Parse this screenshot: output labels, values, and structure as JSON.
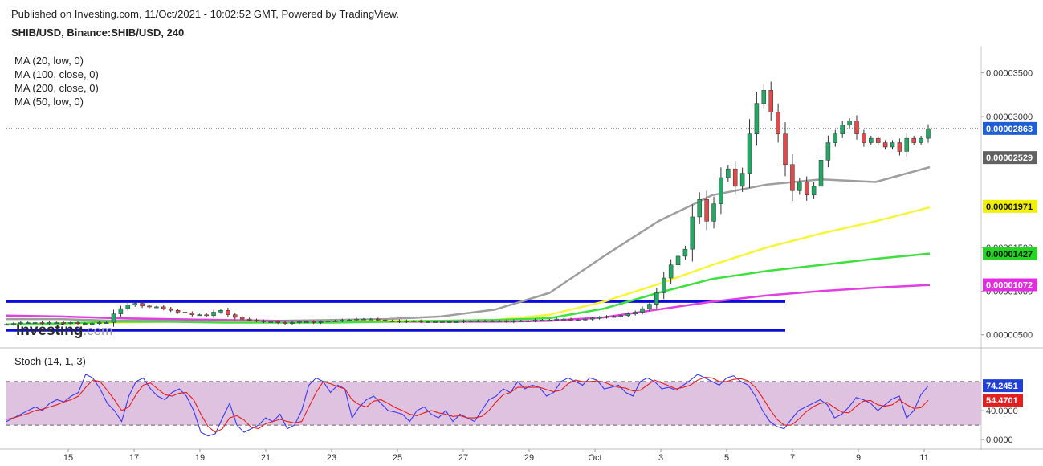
{
  "header": {
    "published": "Published on Investing.com, 11/Oct/2021 - 10:02:52 GMT, Powered by TradingView.",
    "symbol": "SHIB/USD, Binance:SHIB/USD, 240"
  },
  "legend": [
    "MA (20, low, 0)",
    "MA (100, close, 0)",
    "MA (200, close, 0)",
    "MA (50, low, 0)"
  ],
  "stoch_legend": "Stoch (14, 1, 3)",
  "logo": {
    "main": "Investing",
    "suffix": ".com"
  },
  "chart_data": {
    "type": "line",
    "main_panel": {
      "y_ticks": [
        "0.00003500",
        "0.00003000",
        "0.00001500",
        "0.00001000",
        "0.00000500"
      ],
      "y_tick_values": [
        3.5e-05,
        3e-05,
        1.5e-05,
        1e-05,
        5e-06
      ],
      "y_range": [
        3.5e-06,
        3.8e-05
      ],
      "price_labels": [
        {
          "text": "0.00002863",
          "value": 2.863e-05,
          "color": "#1f5fd6"
        },
        {
          "text": "0.00002529",
          "value": 2.529e-05,
          "color": "#616161"
        },
        {
          "text": "0.00001971",
          "value": 1.971e-05,
          "color": "#f0f000"
        },
        {
          "text": "0.00001427",
          "value": 1.427e-05,
          "color": "#22d622"
        },
        {
          "text": "0.00001072",
          "value": 1.072e-05,
          "color": "#e22ce2"
        }
      ],
      "last_price": 2.863e-05,
      "support_line": 5.5e-06,
      "resistance_line": 8.8e-06,
      "candles_close": [
        6.2e-06,
        6.3e-06,
        6.4e-06,
        6.4e-06,
        6.4e-06,
        6.3e-06,
        6.4e-06,
        6.4e-06,
        6.3e-06,
        6.4e-06,
        6.3e-06,
        6.3e-06,
        6.3e-06,
        6.4e-06,
        6.4e-06,
        7.4e-06,
        8e-06,
        8.4e-06,
        8.6e-06,
        8.3e-06,
        8.2e-06,
        8.2e-06,
        8e-06,
        7.8e-06,
        7.6e-06,
        7.5e-06,
        7.3e-06,
        7.3e-06,
        7.2e-06,
        7.6e-06,
        7.8e-06,
        7.3e-06,
        7e-06,
        6.8e-06,
        6.7e-06,
        6.6e-06,
        6.5e-06,
        6.5e-06,
        6.4e-06,
        6.3e-06,
        6.4e-06,
        6.5e-06,
        6.5e-06,
        6.4e-06,
        6.5e-06,
        6.6e-06,
        6.6e-06,
        6.7e-06,
        6.7e-06,
        6.8e-06,
        6.8e-06,
        6.8e-06,
        6.7e-06,
        6.6e-06,
        6.6e-06,
        6.5e-06,
        6.6e-06,
        6.6e-06,
        6.5e-06,
        6.5e-06,
        6.5e-06,
        6.5e-06,
        6.5e-06,
        6.5e-06,
        6.6e-06,
        6.6e-06,
        6.6e-06,
        6.6e-06,
        6.6e-06,
        6.6e-06,
        6.5e-06,
        6.6e-06,
        6.6e-06,
        6.6e-06,
        6.7e-06,
        6.7e-06,
        6.7e-06,
        6.8e-06,
        6.8e-06,
        6.7e-06,
        6.7e-06,
        6.8e-06,
        6.9e-06,
        7e-06,
        7.1e-06,
        7.1e-06,
        7.2e-06,
        7.4e-06,
        7.6e-06,
        8e-06,
        8.5e-06,
        9.8e-06,
        1.15e-05,
        1.3e-05,
        1.4e-05,
        1.48e-05,
        1.85e-05,
        2.05e-05,
        1.8e-05,
        2e-05,
        2.3e-05,
        2.4e-05,
        2.2e-05,
        2.35e-05,
        2.8e-05,
        3.15e-05,
        3.3e-05,
        3.05e-05,
        2.8e-05,
        2.45e-05,
        2.15e-05,
        2.25e-05,
        2.1e-05,
        2.2e-05,
        2.5e-05,
        2.7e-05,
        2.8e-05,
        2.9e-05,
        2.95e-05,
        2.8e-05,
        2.7e-05,
        2.75e-05,
        2.7e-05,
        2.65e-05,
        2.7e-05,
        2.6e-05,
        2.75e-05,
        2.7e-05,
        2.75e-05,
        2.86e-05
      ],
      "moving_averages": [
        {
          "name": "MA (20, low, 0)",
          "color": "#9e9e9e",
          "values": [
            6.8e-06,
            6.8e-06,
            6.6e-06,
            6.7e-06,
            6.6e-06,
            6.6e-06,
            6.7e-06,
            6.8e-06,
            7.1e-06,
            7.9e-06,
            9.8e-06,
            1.4e-05,
            1.8e-05,
            2.1e-05,
            2.22e-05,
            2.28e-05,
            2.25e-05,
            2.42e-05
          ]
        },
        {
          "name": "MA (100, close, 0)",
          "color": "#f5f53c",
          "values": [
            6.2e-06,
            6.3e-06,
            6.4e-06,
            6.5e-06,
            6.5e-06,
            6.5e-06,
            6.5e-06,
            6.6e-06,
            6.6e-06,
            6.7e-06,
            7.3e-06,
            8.8e-06,
            1.08e-05,
            1.3e-05,
            1.5e-05,
            1.66e-05,
            1.8e-05,
            1.96e-05
          ]
        },
        {
          "name": "MA (200, close, 0)",
          "color": "#e040e0",
          "values": [
            7.2e-06,
            7.1e-06,
            6.9e-06,
            6.8e-06,
            6.7e-06,
            6.6e-06,
            6.5e-06,
            6.5e-06,
            6.5e-06,
            6.5e-06,
            6.6e-06,
            7e-06,
            7.9e-06,
            8.8e-06,
            9.5e-06,
            1e-05,
            1.04e-05,
            1.07e-05
          ]
        },
        {
          "name": "MA (50, low, 0)",
          "color": "#3ee03e",
          "values": [
            6.2e-06,
            6.3e-06,
            6.5e-06,
            6.5e-06,
            6.4e-06,
            6.4e-06,
            6.4e-06,
            6.5e-06,
            6.6e-06,
            6.7e-06,
            6.9e-06,
            8e-06,
            9.8e-06,
            1.14e-05,
            1.23e-05,
            1.3e-05,
            1.37e-05,
            1.43e-05
          ]
        }
      ]
    },
    "stoch_panel": {
      "y_ticks": [
        "40.0000",
        "0.0000"
      ],
      "y_tick_values": [
        40,
        0
      ],
      "y_range": [
        -12,
        122
      ],
      "band": [
        20,
        80
      ],
      "labels": [
        {
          "text": "74.2451",
          "value": 74.2451,
          "color": "#1f3fd6"
        },
        {
          "text": "54.4701",
          "value": 54.4701,
          "color": "#e01f1f"
        }
      ],
      "k_values": [
        25,
        30,
        35,
        40,
        45,
        40,
        50,
        55,
        52,
        60,
        65,
        90,
        85,
        70,
        50,
        40,
        25,
        60,
        80,
        85,
        70,
        60,
        55,
        65,
        70,
        60,
        40,
        10,
        5,
        8,
        30,
        50,
        20,
        10,
        15,
        20,
        30,
        25,
        35,
        15,
        20,
        40,
        75,
        85,
        80,
        65,
        75,
        70,
        30,
        45,
        55,
        60,
        50,
        40,
        38,
        35,
        25,
        40,
        45,
        35,
        30,
        40,
        25,
        35,
        30,
        25,
        40,
        55,
        60,
        70,
        65,
        80,
        70,
        75,
        72,
        60,
        65,
        80,
        85,
        80,
        75,
        85,
        82,
        70,
        72,
        75,
        65,
        60,
        80,
        85,
        80,
        70,
        72,
        68,
        75,
        82,
        90,
        85,
        80,
        75,
        85,
        88,
        80,
        75,
        60,
        40,
        25,
        18,
        15,
        28,
        40,
        45,
        50,
        55,
        48,
        30,
        35,
        45,
        58,
        55,
        50,
        40,
        48,
        56,
        60,
        30,
        40,
        62,
        74
      ],
      "d_values": [
        28,
        30,
        33,
        36,
        40,
        42,
        45,
        48,
        52,
        55,
        60,
        72,
        82,
        80,
        68,
        55,
        40,
        45,
        62,
        75,
        78,
        70,
        62,
        60,
        64,
        65,
        55,
        35,
        18,
        10,
        15,
        30,
        33,
        27,
        17,
        15,
        22,
        25,
        28,
        25,
        23,
        25,
        45,
        65,
        80,
        77,
        73,
        70,
        55,
        48,
        45,
        53,
        55,
        50,
        44,
        40,
        35,
        33,
        37,
        40,
        37,
        35,
        32,
        33,
        30,
        30,
        32,
        40,
        52,
        62,
        65,
        72,
        72,
        72,
        72,
        69,
        66,
        68,
        77,
        82,
        80,
        80,
        81,
        79,
        75,
        72,
        71,
        67,
        68,
        75,
        82,
        78,
        74,
        70,
        72,
        75,
        82,
        86,
        85,
        80,
        80,
        83,
        84,
        81,
        72,
        58,
        42,
        28,
        20,
        20,
        28,
        38,
        45,
        50,
        51,
        44,
        38,
        37,
        46,
        53,
        54,
        48,
        46,
        48,
        55,
        48,
        43,
        44,
        54
      ]
    },
    "x_axis": {
      "labels": [
        "15",
        "17",
        "19",
        "21",
        "23",
        "25",
        "27",
        "29",
        "Oct",
        "3",
        "5",
        "7",
        "9",
        "11"
      ]
    }
  }
}
